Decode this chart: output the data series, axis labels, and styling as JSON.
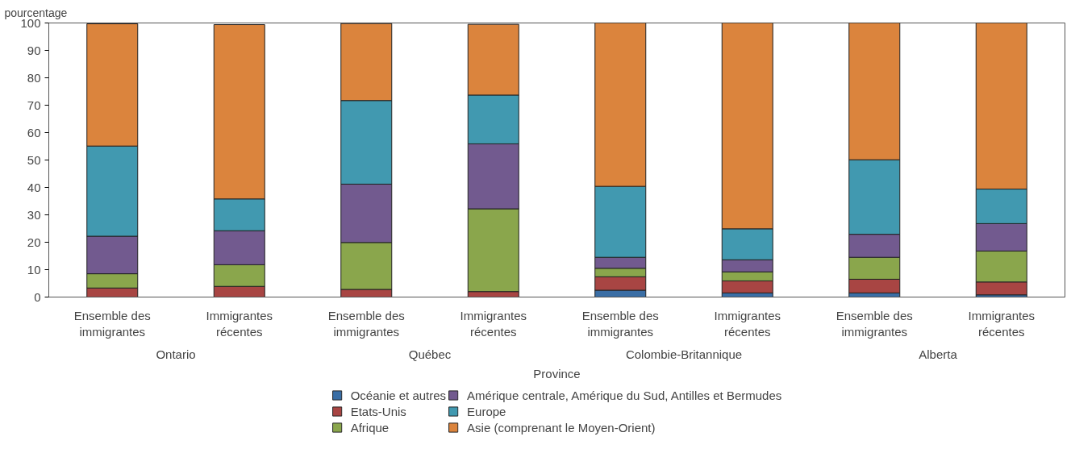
{
  "chart_data": {
    "type": "bar",
    "stacked": true,
    "ylabel": "pourcentage",
    "xlabel": "Province",
    "categories": [
      "Ensemble des immigrantes",
      "Immigrantes récentes",
      "Ensemble des immigrantes",
      "Immigrantes récentes",
      "Ensemble des immigrantes",
      "Immigrantes récentes",
      "Ensemble des immigrantes",
      "Immigrantes récentes"
    ],
    "annotations": [
      "Ontario",
      "Québec",
      "Colombie-Britannique",
      "Alberta"
    ],
    "series": [
      {
        "name": "Océanie et autres",
        "color": "#3a6ea5",
        "values": [
          null,
          null,
          null,
          null,
          2.5,
          1.5,
          1.5,
          0.8
        ]
      },
      {
        "name": "Etats-Unis",
        "color": "#a84543",
        "values": [
          3.3,
          3.9,
          2.8,
          2.0,
          4.9,
          4.4,
          5.0,
          4.7
        ]
      },
      {
        "name": "Afrique",
        "color": "#8aa64c",
        "values": [
          5.2,
          7.9,
          17.1,
          30.2,
          3.1,
          3.3,
          8.0,
          11.3
        ]
      },
      {
        "name": "Amérique centrale, Amérique du Sud, Antilles et Bermudes",
        "color": "#725a8f",
        "values": [
          13.7,
          12.4,
          21.3,
          23.7,
          4.0,
          4.4,
          8.4,
          10.0
        ]
      },
      {
        "name": "Europe",
        "color": "#4199b0",
        "values": [
          32.9,
          11.6,
          30.5,
          17.8,
          25.9,
          11.3,
          27.2,
          12.6
        ]
      },
      {
        "name": "Asie (comprenant le Moyen-Orient)",
        "color": "#db843d",
        "values": [
          44.6,
          63.6,
          28.1,
          25.8,
          59.6,
          75.1,
          49.9,
          60.6
        ]
      }
    ],
    "ylim": [
      0,
      100
    ],
    "yticks": [
      0,
      10,
      20,
      30,
      40,
      50,
      60,
      70,
      80,
      90,
      100
    ],
    "grid": false,
    "legend": "bottom"
  }
}
